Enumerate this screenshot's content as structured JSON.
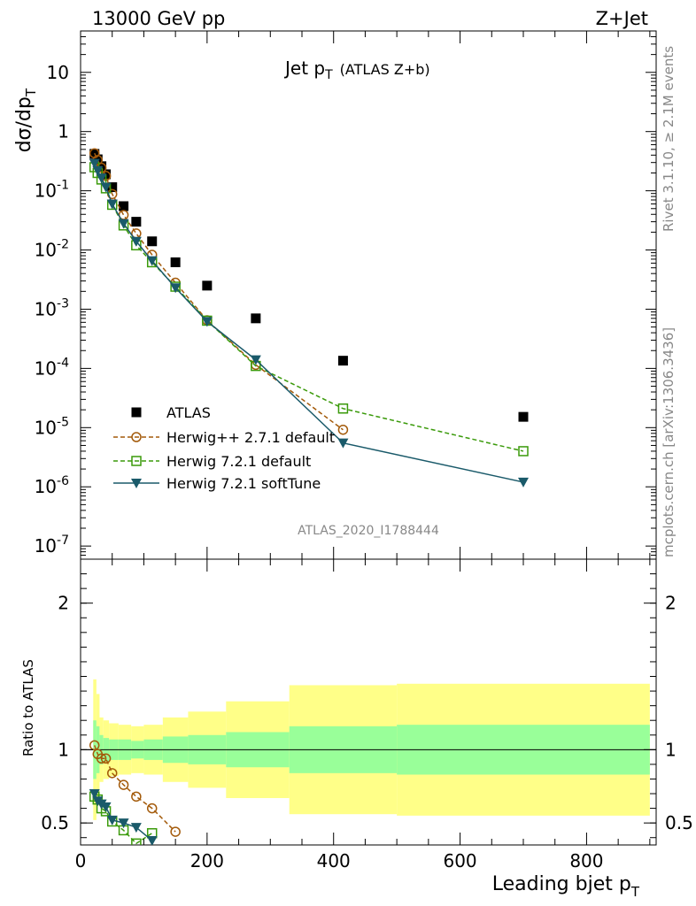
{
  "header": {
    "left": "13000 GeV pp",
    "right": "Z+Jet"
  },
  "side_labels": {
    "rivet": "Rivet 3.1.10, ≥ 2.1M events",
    "mcplots": "mcplots.cern.ch [arXiv:1306.3436]"
  },
  "colors": {
    "atlas": "#000000",
    "herwigpp": "#a35a0a",
    "herwig721": "#3a9a0a",
    "softtune": "#1a5a6a",
    "band_inner": "#99ff99",
    "band_outer": "#ffff88",
    "watermark": "#999999"
  },
  "chart_data": [
    {
      "type": "line",
      "panel": "main",
      "title_main": "Jet p",
      "title_sub": "T",
      "title_extra": "(ATLAS Z+b)",
      "ylabel_main": "dσ/dp",
      "ylabel_sub": "T",
      "watermark": "ATLAS_2020_I1788444",
      "y_scale": "log",
      "xlim": [
        0,
        910
      ],
      "ylim": [
        6e-08,
        50
      ],
      "y_ticks": [
        {
          "v": 10,
          "label": "10"
        },
        {
          "v": 1,
          "label": "1"
        },
        {
          "v": 0.1,
          "base": "10",
          "exp": "-1"
        },
        {
          "v": 0.01,
          "base": "10",
          "exp": "-2"
        },
        {
          "v": 0.001,
          "base": "10",
          "exp": "-3"
        },
        {
          "v": 0.0001,
          "base": "10",
          "exp": "-4"
        },
        {
          "v": 1e-05,
          "base": "10",
          "exp": "-5"
        },
        {
          "v": 1e-06,
          "base": "10",
          "exp": "-6"
        },
        {
          "v": 1e-07,
          "base": "10",
          "exp": "-7"
        }
      ],
      "series": [
        {
          "name": "ATLAS",
          "style": "data",
          "x": [
            22,
            27,
            33,
            40,
            50,
            68,
            88,
            113,
            150,
            200,
            277,
            415,
            700
          ],
          "y": [
            0.42,
            0.34,
            0.26,
            0.19,
            0.115,
            0.055,
            0.03,
            0.014,
            0.0062,
            0.0025,
            0.0007,
            0.000135,
            1.52e-05
          ]
        },
        {
          "name": "Herwig++ 2.7.1 default",
          "style": "circle",
          "x": [
            22,
            27,
            33,
            40,
            50,
            68,
            88,
            113,
            150,
            200,
            277,
            415
          ],
          "y": [
            0.43,
            0.33,
            0.245,
            0.178,
            0.088,
            0.039,
            0.019,
            0.0083,
            0.0028,
            0.00065,
            0.000115,
            9.2e-06
          ]
        },
        {
          "name": "Herwig 7.2.1 default",
          "style": "square",
          "x": [
            22,
            27,
            33,
            40,
            50,
            68,
            88,
            113,
            150,
            200,
            277,
            415,
            700
          ],
          "y": [
            0.25,
            0.2,
            0.155,
            0.11,
            0.058,
            0.026,
            0.012,
            0.0062,
            0.0024,
            0.00064,
            0.00011,
            2.1e-05,
            4e-06
          ]
        },
        {
          "name": "Herwig 7.2.1 softTune",
          "style": "triangle",
          "x": [
            22,
            27,
            33,
            40,
            50,
            68,
            88,
            113,
            150,
            200,
            277,
            415,
            700
          ],
          "y": [
            0.29,
            0.22,
            0.165,
            0.115,
            0.06,
            0.028,
            0.014,
            0.0066,
            0.0023,
            0.00062,
            0.00014,
            5.5e-06,
            1.2e-06
          ]
        }
      ]
    },
    {
      "type": "line",
      "panel": "ratio",
      "ylabel": "Ratio to ATLAS",
      "xlabel_main": "Leading bjet p",
      "xlabel_sub": "T",
      "xlim": [
        0,
        910
      ],
      "ylim": [
        0.35,
        2.3
      ],
      "x_ticks": [
        0,
        200,
        400,
        600,
        800
      ],
      "y_ticks": [
        0.5,
        1,
        2
      ],
      "bands": {
        "edges": [
          20,
          25,
          30,
          36,
          45,
          60,
          80,
          100,
          130,
          170,
          230,
          330,
          500,
          900
        ],
        "inner": [
          0.2,
          0.16,
          0.1,
          0.08,
          0.07,
          0.07,
          0.06,
          0.07,
          0.09,
          0.1,
          0.12,
          0.16,
          0.17
        ],
        "outer": [
          0.48,
          0.38,
          0.22,
          0.2,
          0.18,
          0.17,
          0.16,
          0.17,
          0.22,
          0.26,
          0.33,
          0.44,
          0.45
        ]
      },
      "series": [
        {
          "name": "Herwig++ 2.7.1 default",
          "style": "circle",
          "x": [
            22,
            27,
            33,
            40,
            50,
            68,
            88,
            113,
            150
          ],
          "y": [
            1.03,
            0.97,
            0.94,
            0.94,
            0.84,
            0.76,
            0.68,
            0.6,
            0.44
          ]
        },
        {
          "name": "Herwig 7.2.1 default",
          "style": "square",
          "x": [
            22,
            27,
            33,
            40,
            50,
            68,
            88,
            113
          ],
          "y": [
            0.68,
            0.66,
            0.6,
            0.58,
            0.51,
            0.45,
            0.36,
            0.43
          ]
        },
        {
          "name": "Herwig 7.2.1 softTune",
          "style": "triangle",
          "x": [
            22,
            27,
            33,
            40,
            50,
            68,
            88,
            113
          ],
          "y": [
            0.7,
            0.65,
            0.63,
            0.61,
            0.52,
            0.5,
            0.47,
            0.38
          ]
        }
      ]
    }
  ]
}
